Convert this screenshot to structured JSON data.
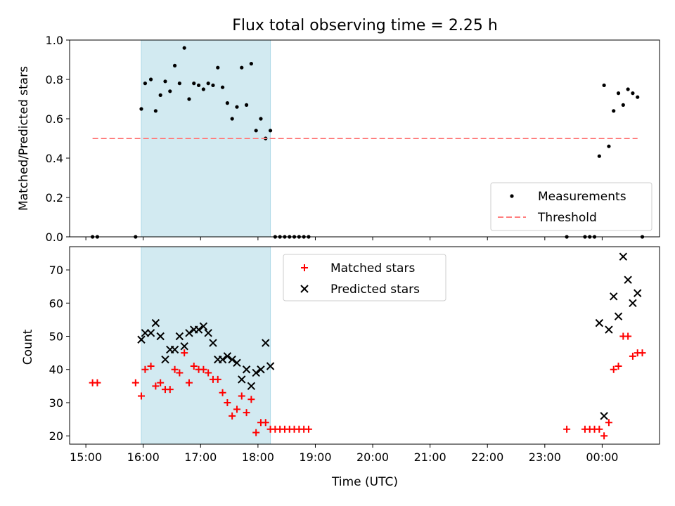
{
  "title": "Flux total observing time = 2.25 h",
  "colors": {
    "highlight": "#add8e6",
    "threshold": "#ff7f7f",
    "measurement": "#000000",
    "matched": "#ff0000",
    "predicted": "#000000"
  },
  "chart_data": [
    {
      "type": "scatter",
      "ylabel": "Matched/Predicted stars",
      "ylim": [
        0,
        1.0
      ],
      "yticks": [
        "0.0",
        "0.2",
        "0.4",
        "0.6",
        "0.8",
        "1.0"
      ],
      "highlight_span": [
        "15:58",
        "18:13"
      ],
      "legend_placement": "lower-right",
      "series": [
        {
          "name": "Measurements",
          "marker": "dot",
          "points": [
            [
              "15:07",
              0
            ],
            [
              "15:12",
              0
            ],
            [
              "15:52",
              0
            ],
            [
              "15:58",
              0.65
            ],
            [
              "16:02",
              0.78
            ],
            [
              "16:08",
              0.8
            ],
            [
              "16:13",
              0.64
            ],
            [
              "16:18",
              0.72
            ],
            [
              "16:23",
              0.79
            ],
            [
              "16:28",
              0.74
            ],
            [
              "16:33",
              0.87
            ],
            [
              "16:38",
              0.78
            ],
            [
              "16:43",
              0.96
            ],
            [
              "16:48",
              0.7
            ],
            [
              "16:53",
              0.78
            ],
            [
              "16:58",
              0.77
            ],
            [
              "17:03",
              0.75
            ],
            [
              "17:08",
              0.78
            ],
            [
              "17:13",
              0.77
            ],
            [
              "17:18",
              0.86
            ],
            [
              "17:23",
              0.76
            ],
            [
              "17:28",
              0.68
            ],
            [
              "17:33",
              0.6
            ],
            [
              "17:38",
              0.66
            ],
            [
              "17:43",
              0.86
            ],
            [
              "17:48",
              0.67
            ],
            [
              "17:53",
              0.88
            ],
            [
              "17:58",
              0.54
            ],
            [
              "18:03",
              0.6
            ],
            [
              "18:08",
              0.5
            ],
            [
              "18:13",
              0.54
            ],
            [
              "18:18",
              0
            ],
            [
              "18:23",
              0
            ],
            [
              "18:28",
              0
            ],
            [
              "18:33",
              0
            ],
            [
              "18:38",
              0
            ],
            [
              "18:43",
              0
            ],
            [
              "18:48",
              0
            ],
            [
              "18:53",
              0
            ],
            [
              "23:23",
              0
            ],
            [
              "23:42",
              0
            ],
            [
              "23:47",
              0
            ],
            [
              "23:52",
              0
            ],
            [
              "23:57",
              0.41
            ],
            [
              "00:02",
              0.77
            ],
            [
              "00:07",
              0.46
            ],
            [
              "00:12",
              0.64
            ],
            [
              "00:17",
              0.73
            ],
            [
              "00:22",
              0.67
            ],
            [
              "00:27",
              0.75
            ],
            [
              "00:32",
              0.73
            ],
            [
              "00:37",
              0.71
            ],
            [
              "00:42",
              0
            ]
          ]
        },
        {
          "name": "Threshold",
          "style": "dashed",
          "points": [
            [
              "15:07",
              0.5
            ],
            [
              "00:37",
              0.5
            ]
          ]
        }
      ]
    },
    {
      "type": "scatter",
      "ylabel": "Count",
      "xlabel": "Time (UTC)",
      "ylim": [
        17.5,
        77
      ],
      "yticks": [
        "20",
        "30",
        "40",
        "50",
        "60",
        "70"
      ],
      "xticks": [
        "15:00",
        "16:00",
        "17:00",
        "18:00",
        "19:00",
        "20:00",
        "21:00",
        "22:00",
        "23:00",
        "00:00"
      ],
      "highlight_span": [
        "15:58",
        "18:13"
      ],
      "legend_placement": "upper-center",
      "series": [
        {
          "name": "Matched stars",
          "marker": "plus",
          "points": [
            [
              "15:07",
              36
            ],
            [
              "15:12",
              36
            ],
            [
              "15:52",
              36
            ],
            [
              "15:58",
              32
            ],
            [
              "16:02",
              40
            ],
            [
              "16:08",
              41
            ],
            [
              "16:13",
              35
            ],
            [
              "16:18",
              36
            ],
            [
              "16:23",
              34
            ],
            [
              "16:28",
              34
            ],
            [
              "16:33",
              40
            ],
            [
              "16:38",
              39
            ],
            [
              "16:43",
              45
            ],
            [
              "16:48",
              36
            ],
            [
              "16:53",
              41
            ],
            [
              "16:58",
              40
            ],
            [
              "17:03",
              40
            ],
            [
              "17:08",
              39
            ],
            [
              "17:13",
              37
            ],
            [
              "17:18",
              37
            ],
            [
              "17:23",
              33
            ],
            [
              "17:28",
              30
            ],
            [
              "17:33",
              26
            ],
            [
              "17:38",
              28
            ],
            [
              "17:43",
              32
            ],
            [
              "17:48",
              27
            ],
            [
              "17:53",
              31
            ],
            [
              "17:58",
              21
            ],
            [
              "18:03",
              24
            ],
            [
              "18:08",
              24
            ],
            [
              "18:13",
              22
            ],
            [
              "18:18",
              22
            ],
            [
              "18:23",
              22
            ],
            [
              "18:28",
              22
            ],
            [
              "18:33",
              22
            ],
            [
              "18:38",
              22
            ],
            [
              "18:43",
              22
            ],
            [
              "18:48",
              22
            ],
            [
              "18:53",
              22
            ],
            [
              "23:23",
              22
            ],
            [
              "23:42",
              22
            ],
            [
              "23:47",
              22
            ],
            [
              "23:52",
              22
            ],
            [
              "23:57",
              22
            ],
            [
              "00:02",
              20
            ],
            [
              "00:07",
              24
            ],
            [
              "00:12",
              40
            ],
            [
              "00:17",
              41
            ],
            [
              "00:22",
              50
            ],
            [
              "00:27",
              50
            ],
            [
              "00:32",
              44
            ],
            [
              "00:37",
              45
            ],
            [
              "00:42",
              45
            ]
          ]
        },
        {
          "name": "Predicted stars",
          "marker": "cross",
          "points": [
            [
              "15:58",
              49
            ],
            [
              "16:02",
              51
            ],
            [
              "16:08",
              51
            ],
            [
              "16:13",
              54
            ],
            [
              "16:18",
              50
            ],
            [
              "16:23",
              43
            ],
            [
              "16:28",
              46
            ],
            [
              "16:33",
              46
            ],
            [
              "16:38",
              50
            ],
            [
              "16:43",
              47
            ],
            [
              "16:48",
              51
            ],
            [
              "16:53",
              52
            ],
            [
              "16:58",
              52
            ],
            [
              "17:03",
              53
            ],
            [
              "17:08",
              51
            ],
            [
              "17:13",
              48
            ],
            [
              "17:18",
              43
            ],
            [
              "17:23",
              43
            ],
            [
              "17:28",
              44
            ],
            [
              "17:33",
              43
            ],
            [
              "17:38",
              42
            ],
            [
              "17:43",
              37
            ],
            [
              "17:48",
              40
            ],
            [
              "17:53",
              35
            ],
            [
              "17:58",
              39
            ],
            [
              "18:03",
              40
            ],
            [
              "18:08",
              48
            ],
            [
              "18:13",
              41
            ],
            [
              "23:57",
              54
            ],
            [
              "00:02",
              26
            ],
            [
              "00:07",
              52
            ],
            [
              "00:12",
              62
            ],
            [
              "00:17",
              56
            ],
            [
              "00:22",
              74
            ],
            [
              "00:27",
              67
            ],
            [
              "00:32",
              60
            ],
            [
              "00:37",
              63
            ]
          ]
        }
      ]
    }
  ]
}
